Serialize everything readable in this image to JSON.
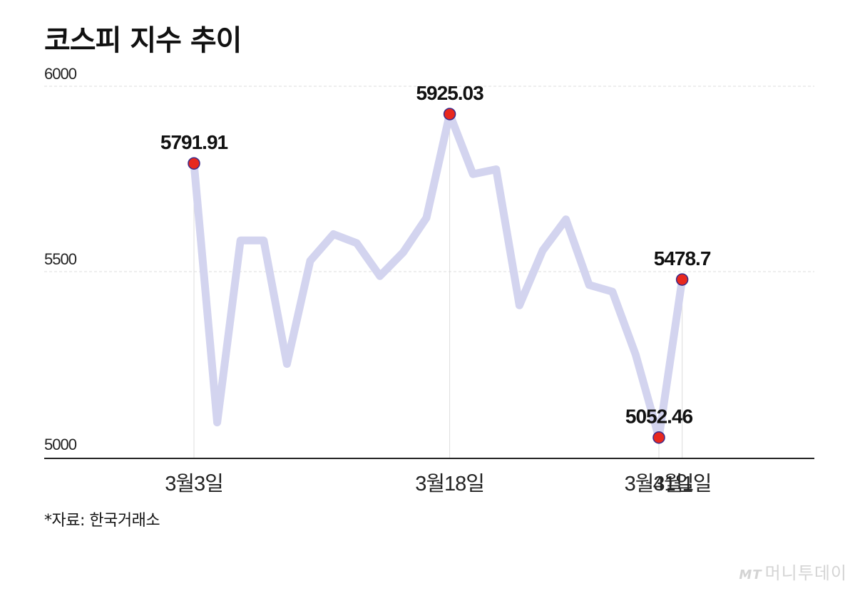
{
  "title": "코스피 지수 추이",
  "source": "*자료: 한국거래소",
  "brand": {
    "mark": "MT",
    "name": "머니투데이"
  },
  "colors": {
    "line": "#d3d4ef",
    "marker": "#e8281e",
    "marker_stroke": "#3a2a8a",
    "grid": "#dddddd",
    "axis": "#222222"
  },
  "chart_data": {
    "type": "line",
    "title": "코스피 지수 추이",
    "ylim": [
      5000,
      6000
    ],
    "yticks": [
      6000,
      5500,
      5000
    ],
    "xtick_labels": [
      {
        "index": 0,
        "label": "3월3일"
      },
      {
        "index": 11,
        "label": "3월18일"
      },
      {
        "index": 20,
        "label": "3월31일"
      },
      {
        "index": 21,
        "label": "4월1일"
      }
    ],
    "series": [
      {
        "values": [
          5791.91,
          5093,
          5584,
          5584,
          5251,
          5529,
          5601,
          5577,
          5488,
          5552,
          5645,
          5925.03,
          5763,
          5776,
          5409,
          5557,
          5641,
          5464,
          5446,
          5276,
          5052.46,
          5478.7
        ]
      }
    ],
    "annotations": [
      {
        "index": 0,
        "text": "5791.91"
      },
      {
        "index": 11,
        "text": "5925.03"
      },
      {
        "index": 20,
        "text": "5052.46"
      },
      {
        "index": 21,
        "text": "5478.7"
      }
    ]
  }
}
